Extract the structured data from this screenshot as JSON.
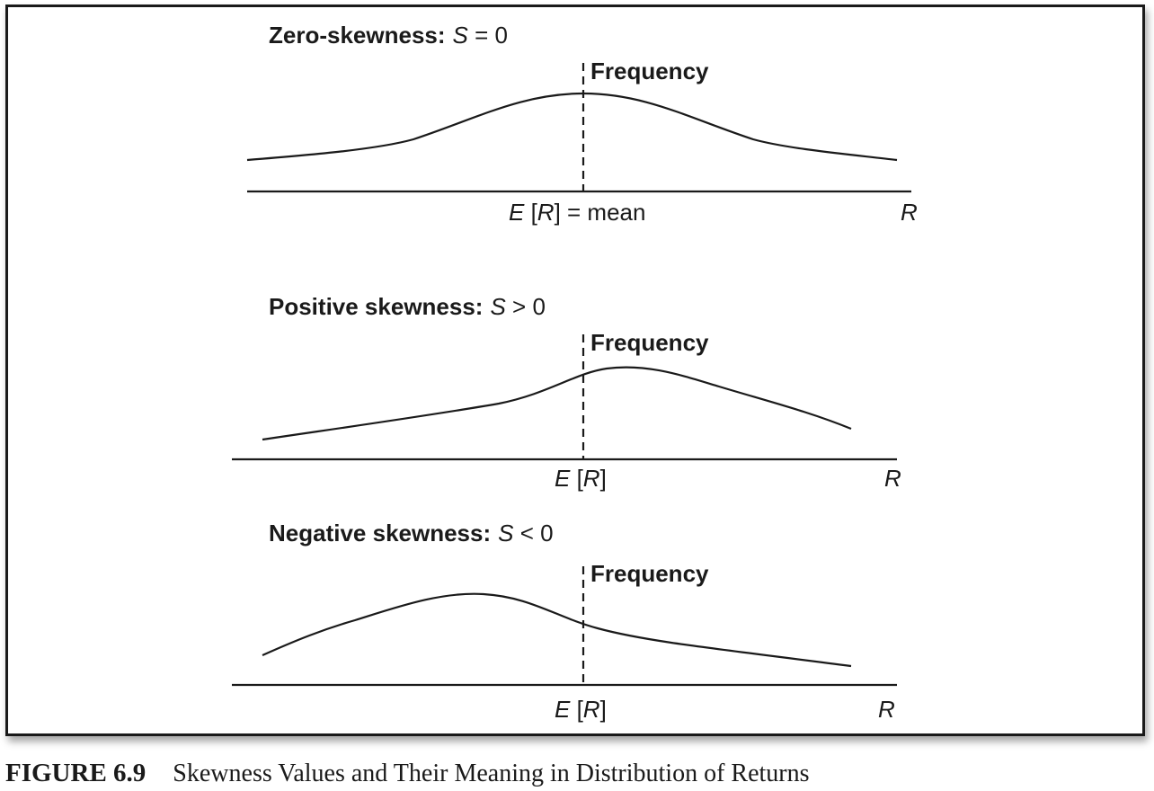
{
  "panels": [
    {
      "title_bold": "Zero-skewness:",
      "title_var": "S",
      "title_rest": " = 0",
      "frequency_label": "Frequency",
      "mean_label_var1": "E",
      "mean_label_mid": " [",
      "mean_label_var2": "R",
      "mean_label_end": "] = mean",
      "axis_var": "R"
    },
    {
      "title_bold": "Positive skewness:",
      "title_var": "S",
      "title_rest": " > 0",
      "frequency_label": "Frequency",
      "mean_label_var1": "E",
      "mean_label_mid": " [",
      "mean_label_var2": "R",
      "mean_label_end": "]",
      "axis_var": "R"
    },
    {
      "title_bold": "Negative skewness:",
      "title_var": "S",
      "title_rest": " < 0",
      "frequency_label": "Frequency",
      "mean_label_var1": "E",
      "mean_label_mid": " [",
      "mean_label_var2": "R",
      "mean_label_end": "]",
      "axis_var": "R"
    }
  ],
  "caption": {
    "number": "FIGURE 6.9",
    "text": "Skewness Values and Their Meaning in Distribution of Returns"
  }
}
